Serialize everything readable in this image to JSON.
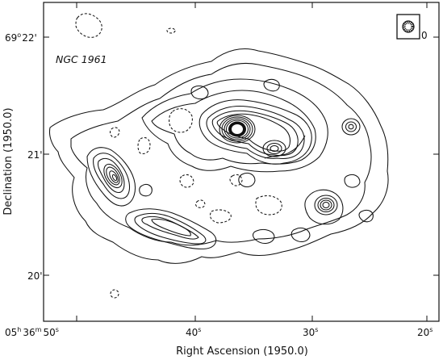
{
  "figure": {
    "object_label": "NGC 1961",
    "y_axis_title": "Declination (1950.0)",
    "x_axis_title": "Right Ascension (1950.0)",
    "y_ticks": [
      {
        "deg": "69",
        "deg_sup": "o",
        "arcmin": "22'"
      },
      {
        "deg": "",
        "deg_sup": "",
        "arcmin": "21'"
      },
      {
        "deg": "",
        "deg_sup": "",
        "arcmin": "20'"
      }
    ],
    "x_ticks": [
      {
        "h": "05",
        "h_sup": "h",
        "m": "36",
        "m_sup": "m",
        "s": "50",
        "s_sup": "s"
      },
      {
        "s": "40",
        "s_sup": "s"
      },
      {
        "s": "30",
        "s_sup": "s"
      },
      {
        "s": "20",
        "s_sup": "s"
      }
    ],
    "beam_caption": "0",
    "contour_color": "#111111",
    "background_color": "#ffffff"
  }
}
